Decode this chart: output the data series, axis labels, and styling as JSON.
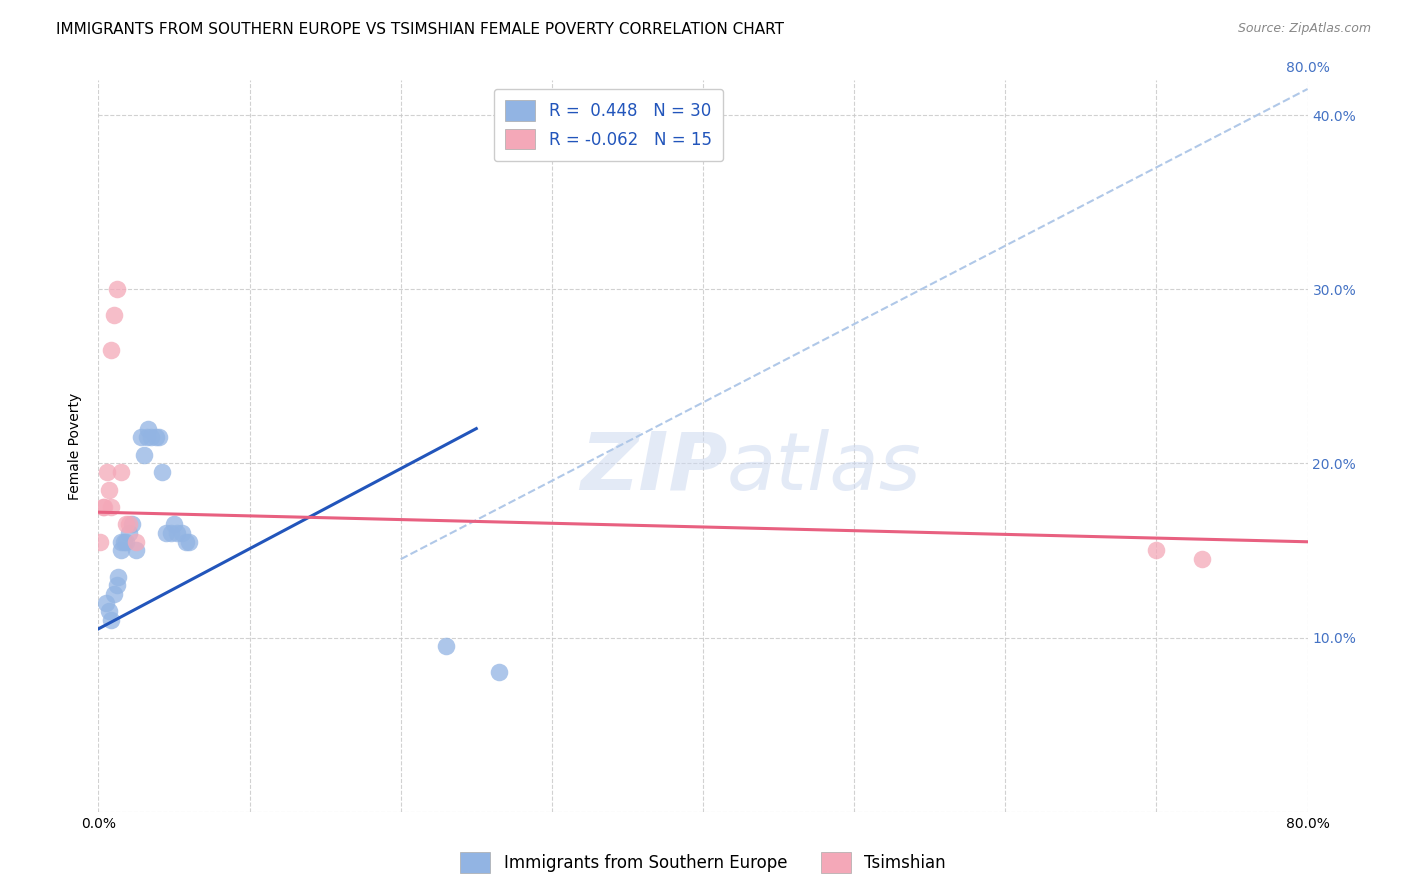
{
  "title": "IMMIGRANTS FROM SOUTHERN EUROPE VS TSIMSHIAN FEMALE POVERTY CORRELATION CHART",
  "source": "Source: ZipAtlas.com",
  "ylabel": "Female Poverty",
  "xlim": [
    0,
    0.8
  ],
  "ylim": [
    0,
    0.42
  ],
  "blue_color": "#92b4e3",
  "pink_color": "#f4a8b8",
  "blue_line_color": "#2255bb",
  "pink_line_color": "#e86080",
  "dashed_line_color": "#b0c8e8",
  "right_tick_color": "#4472c4",
  "legend_R1": "R =  0.448",
  "legend_N1": "N = 30",
  "legend_R2": "R = -0.062",
  "legend_N2": "N = 15",
  "legend_label1": "Immigrants from Southern Europe",
  "legend_label2": "Tsimshian",
  "watermark_zip": "ZIP",
  "watermark_atlas": "atlas",
  "blue_scatter_x": [
    0.005,
    0.007,
    0.008,
    0.01,
    0.012,
    0.013,
    0.015,
    0.015,
    0.017,
    0.018,
    0.02,
    0.022,
    0.025,
    0.028,
    0.03,
    0.032,
    0.033,
    0.035,
    0.038,
    0.04,
    0.042,
    0.045,
    0.048,
    0.05,
    0.052,
    0.055,
    0.058,
    0.06,
    0.23,
    0.265
  ],
  "blue_scatter_y": [
    0.12,
    0.115,
    0.11,
    0.125,
    0.13,
    0.135,
    0.15,
    0.155,
    0.155,
    0.155,
    0.16,
    0.165,
    0.15,
    0.215,
    0.205,
    0.215,
    0.22,
    0.215,
    0.215,
    0.215,
    0.195,
    0.16,
    0.16,
    0.165,
    0.16,
    0.16,
    0.155,
    0.155,
    0.095,
    0.08
  ],
  "pink_scatter_x": [
    0.001,
    0.003,
    0.004,
    0.006,
    0.007,
    0.008,
    0.008,
    0.01,
    0.012,
    0.015,
    0.018,
    0.02,
    0.025,
    0.7,
    0.73
  ],
  "pink_scatter_y": [
    0.155,
    0.175,
    0.175,
    0.195,
    0.185,
    0.175,
    0.265,
    0.285,
    0.3,
    0.195,
    0.165,
    0.165,
    0.155,
    0.15,
    0.145
  ],
  "blue_line_x0": 0.0,
  "blue_line_y0": 0.105,
  "blue_line_x1": 0.25,
  "blue_line_y1": 0.22,
  "pink_line_x0": 0.0,
  "pink_line_y0": 0.172,
  "pink_line_x1": 0.8,
  "pink_line_y1": 0.155,
  "dashed_line_x0": 0.2,
  "dashed_line_y0": 0.145,
  "dashed_line_x1": 0.8,
  "dashed_line_y1": 0.415,
  "title_fontsize": 11,
  "axis_label_fontsize": 10,
  "tick_fontsize": 10,
  "legend_fontsize": 12,
  "source_fontsize": 9,
  "background_color": "#ffffff",
  "grid_color": "#cccccc"
}
